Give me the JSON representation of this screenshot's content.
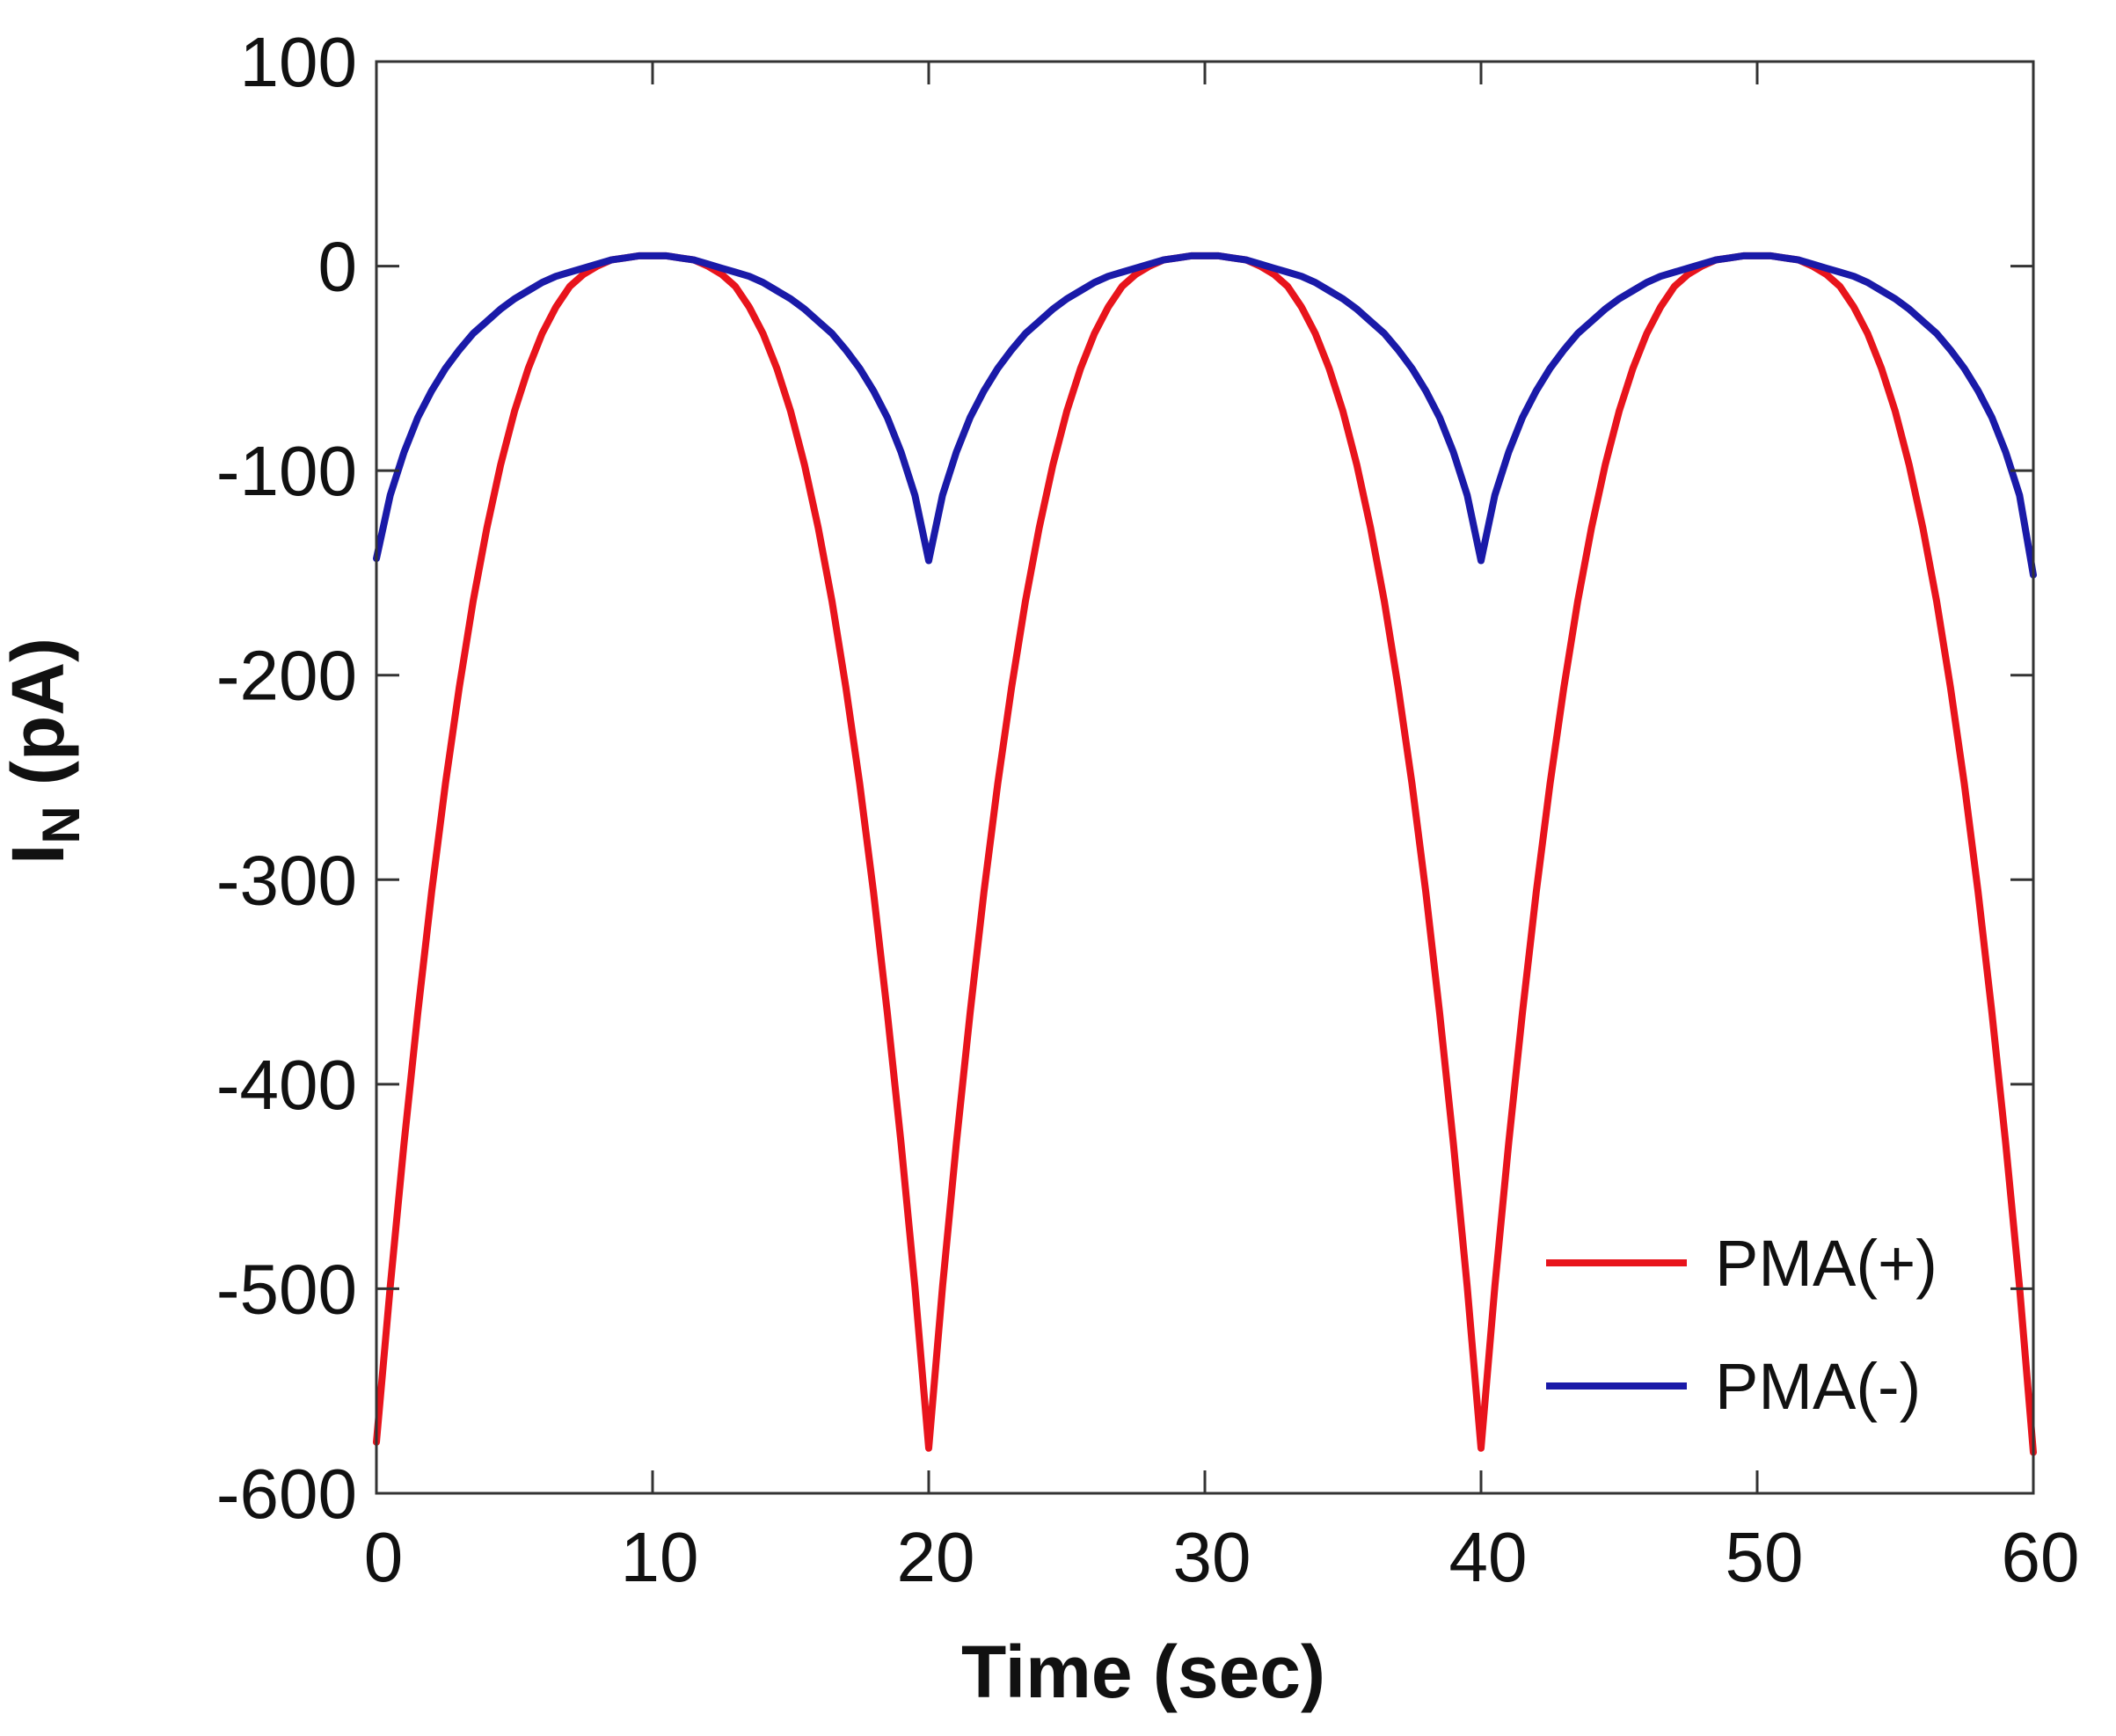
{
  "chart_data": {
    "type": "line",
    "title": "",
    "xlabel": "Time (sec)",
    "ylabel_main": "I",
    "ylabel_sub": "N",
    "ylabel_unit": " (pA)",
    "xlim": [
      0,
      60
    ],
    "ylim": [
      -600,
      100
    ],
    "xticks": [
      0,
      10,
      20,
      30,
      40,
      50,
      60
    ],
    "xtick_labels": [
      "0",
      "10",
      "20",
      "30",
      "40",
      "50",
      "60"
    ],
    "yticks": [
      100,
      0,
      -100,
      -200,
      -300,
      -400,
      -500,
      -600
    ],
    "ytick_labels": [
      "100",
      "0",
      "-100",
      "-200",
      "-300",
      "-400",
      "-500",
      "-600"
    ],
    "grid": false,
    "legend_position": "bottom-right",
    "series": [
      {
        "name": "PMA(+)",
        "color": "#e8141c",
        "x": [
          0,
          0.5,
          1,
          1.5,
          2,
          2.5,
          3,
          3.5,
          4,
          4.5,
          5,
          5.5,
          6,
          6.5,
          7,
          7.5,
          8,
          8.5,
          9,
          9.5,
          10,
          10.5,
          11,
          11.5,
          12,
          12.5,
          13,
          13.5,
          14,
          14.5,
          15,
          15.5,
          16,
          16.5,
          17,
          17.5,
          18,
          18.5,
          19,
          19.5,
          20,
          20.5,
          21,
          21.5,
          22,
          22.5,
          23,
          23.5,
          24,
          24.5,
          25,
          25.5,
          26,
          26.5,
          27,
          27.5,
          28,
          28.5,
          29,
          29.5,
          30,
          30.5,
          31,
          31.5,
          32,
          32.5,
          33,
          33.5,
          34,
          34.5,
          35,
          35.5,
          36,
          36.5,
          37,
          37.5,
          38,
          38.5,
          39,
          39.5,
          40,
          40.5,
          41,
          41.5,
          42,
          42.5,
          43,
          43.5,
          44,
          44.5,
          45,
          45.5,
          46,
          46.5,
          47,
          47.5,
          48,
          48.5,
          49,
          49.5,
          50,
          50.5,
          51,
          51.5,
          52,
          52.5,
          53,
          53.5,
          54,
          54.5,
          55,
          55.5,
          56,
          56.5,
          57,
          57.5,
          58,
          58.5,
          59,
          59.5,
          60
        ],
        "y": [
          -575,
          -499,
          -429,
          -365,
          -306,
          -253,
          -206,
          -164,
          -128,
          -97,
          -71,
          -50,
          -33,
          -20,
          -10,
          -4,
          0,
          3,
          4,
          5,
          5,
          5,
          4,
          3,
          0,
          -4,
          -10,
          -20,
          -33,
          -50,
          -71,
          -97,
          -128,
          -164,
          -206,
          -253,
          -306,
          -365,
          -429,
          -499,
          -578,
          -499,
          -429,
          -365,
          -306,
          -253,
          -206,
          -164,
          -128,
          -97,
          -71,
          -50,
          -33,
          -20,
          -10,
          -4,
          0,
          3,
          4,
          5,
          5,
          5,
          4,
          3,
          0,
          -4,
          -10,
          -20,
          -33,
          -50,
          -71,
          -97,
          -128,
          -164,
          -206,
          -253,
          -306,
          -365,
          -429,
          -499,
          -578,
          -499,
          -429,
          -365,
          -306,
          -253,
          -206,
          -164,
          -128,
          -97,
          -71,
          -50,
          -33,
          -20,
          -10,
          -4,
          0,
          3,
          4,
          5,
          5,
          5,
          4,
          3,
          0,
          -4,
          -10,
          -20,
          -33,
          -50,
          -71,
          -97,
          -128,
          -164,
          -206,
          -253,
          -306,
          -365,
          -429,
          -499,
          -580
        ]
      },
      {
        "name": "PMA(-)",
        "color": "#1a1aa8",
        "x": [
          0,
          0.5,
          1,
          1.5,
          2,
          2.5,
          3,
          3.5,
          4,
          4.5,
          5,
          5.5,
          6,
          6.5,
          7,
          7.5,
          8,
          8.5,
          9,
          9.5,
          10,
          10.5,
          11,
          11.5,
          12,
          12.5,
          13,
          13.5,
          14,
          14.5,
          15,
          15.5,
          16,
          16.5,
          17,
          17.5,
          18,
          18.5,
          19,
          19.5,
          20,
          20.5,
          21,
          21.5,
          22,
          22.5,
          23,
          23.5,
          24,
          24.5,
          25,
          25.5,
          26,
          26.5,
          27,
          27.5,
          28,
          28.5,
          29,
          29.5,
          30,
          30.5,
          31,
          31.5,
          32,
          32.5,
          33,
          33.5,
          34,
          34.5,
          35,
          35.5,
          36,
          36.5,
          37,
          37.5,
          38,
          38.5,
          39,
          39.5,
          40,
          40.5,
          41,
          41.5,
          42,
          42.5,
          43,
          43.5,
          44,
          44.5,
          45,
          45.5,
          46,
          46.5,
          47,
          47.5,
          48,
          48.5,
          49,
          49.5,
          50,
          50.5,
          51,
          51.5,
          52,
          52.5,
          53,
          53.5,
          54,
          54.5,
          55,
          55.5,
          56,
          56.5,
          57,
          57.5,
          58,
          58.5,
          59,
          59.5,
          60
        ],
        "y": [
          -143,
          -112,
          -91,
          -74,
          -61,
          -50,
          -41,
          -33,
          -27,
          -21,
          -16,
          -12,
          -8,
          -5,
          -3,
          -1,
          1,
          3,
          4,
          5,
          5,
          5,
          4,
          3,
          1,
          -1,
          -3,
          -5,
          -8,
          -12,
          -16,
          -21,
          -27,
          -33,
          -41,
          -50,
          -61,
          -74,
          -91,
          -112,
          -144,
          -112,
          -91,
          -74,
          -61,
          -50,
          -41,
          -33,
          -27,
          -21,
          -16,
          -12,
          -8,
          -5,
          -3,
          -1,
          1,
          3,
          4,
          5,
          5,
          5,
          4,
          3,
          1,
          -1,
          -3,
          -5,
          -8,
          -12,
          -16,
          -21,
          -27,
          -33,
          -41,
          -50,
          -61,
          -74,
          -91,
          -112,
          -144,
          -112,
          -91,
          -74,
          -61,
          -50,
          -41,
          -33,
          -27,
          -21,
          -16,
          -12,
          -8,
          -5,
          -3,
          -1,
          1,
          3,
          4,
          5,
          5,
          5,
          4,
          3,
          1,
          -1,
          -3,
          -5,
          -8,
          -12,
          -16,
          -21,
          -27,
          -33,
          -41,
          -50,
          -61,
          -74,
          -91,
          -112,
          -151
        ]
      }
    ]
  }
}
